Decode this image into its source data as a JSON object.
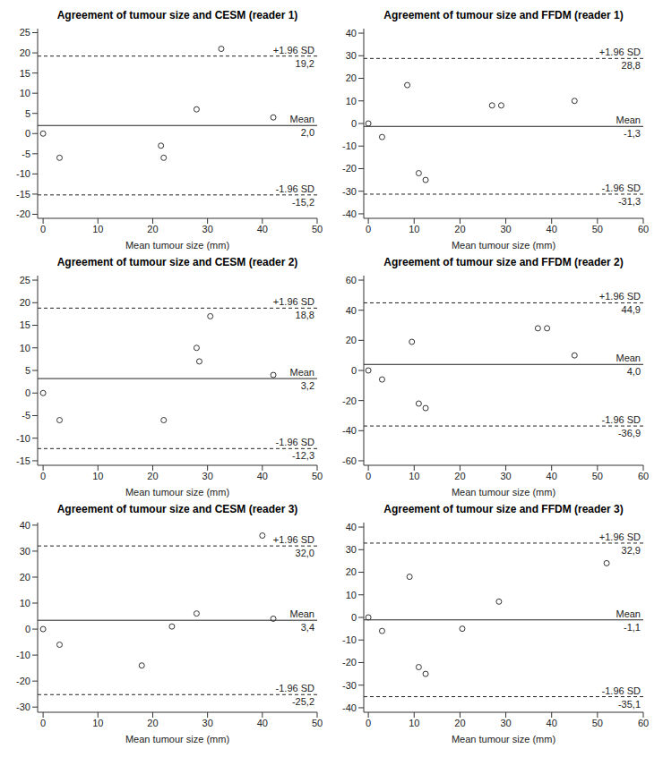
{
  "chart_data": [
    {
      "type": "scatter",
      "title": "Agreement of tumour size and CESM (reader 1)",
      "x_label": "Mean tumour size (mm)",
      "xlim": [
        -1,
        50
      ],
      "xticks": [
        0,
        10,
        20,
        30,
        40,
        50
      ],
      "ylim": [
        -21,
        26
      ],
      "yticks": [
        -20,
        -15,
        -10,
        -5,
        0,
        5,
        10,
        15,
        20,
        25
      ],
      "grid": false,
      "marker": "open_circle",
      "color": "#333333",
      "x": [
        0,
        3,
        21.5,
        22,
        28,
        32.5,
        42
      ],
      "values": [
        0,
        -6,
        -3,
        -6,
        6,
        21,
        4
      ],
      "lines": [
        {
          "name": "+1.96 SD",
          "value": 19.2,
          "value_label": "19,2",
          "line_style": "dashed"
        },
        {
          "name": "Mean",
          "value": 2.0,
          "value_label": "2,0",
          "line_style": "solid"
        },
        {
          "name": "-1.96 SD",
          "value": -15.2,
          "value_label": "-15,2",
          "line_style": "dashed"
        }
      ]
    },
    {
      "type": "scatter",
      "title": "Agreement of tumour size and FFDM (reader 1)",
      "x_label": "Mean tumour size (mm)",
      "xlim": [
        -1,
        60
      ],
      "xticks": [
        0,
        10,
        20,
        30,
        40,
        50,
        60
      ],
      "ylim": [
        -42,
        42
      ],
      "yticks": [
        -40,
        -30,
        -20,
        -10,
        0,
        10,
        20,
        30,
        40
      ],
      "grid": false,
      "marker": "open_circle",
      "color": "#333333",
      "x": [
        0,
        3,
        8.5,
        11,
        12.5,
        27,
        29,
        45
      ],
      "values": [
        0,
        -6,
        17,
        -22,
        -25,
        8,
        8,
        10
      ],
      "lines": [
        {
          "name": "+1.96 SD",
          "value": 28.8,
          "value_label": "28,8",
          "line_style": "dashed"
        },
        {
          "name": "Mean",
          "value": -1.3,
          "value_label": "-1,3",
          "line_style": "solid"
        },
        {
          "name": "-1.96 SD",
          "value": -31.3,
          "value_label": "-31,3",
          "line_style": "dashed"
        }
      ]
    },
    {
      "type": "scatter",
      "title": "Agreement of tumour size and CESM (reader 2)",
      "x_label": "Mean tumour size (mm)",
      "xlim": [
        -1,
        50
      ],
      "xticks": [
        0,
        10,
        20,
        30,
        40,
        50
      ],
      "ylim": [
        -16,
        26
      ],
      "yticks": [
        -15,
        -10,
        -5,
        0,
        5,
        10,
        15,
        20,
        25
      ],
      "grid": false,
      "marker": "open_circle",
      "color": "#333333",
      "x": [
        0,
        3,
        22,
        28,
        28.5,
        30.5,
        42
      ],
      "values": [
        0,
        -6,
        -6,
        10,
        7,
        17,
        4
      ],
      "lines": [
        {
          "name": "+1.96 SD",
          "value": 18.8,
          "value_label": "18,8",
          "line_style": "dashed"
        },
        {
          "name": "Mean",
          "value": 3.2,
          "value_label": "3,2",
          "line_style": "solid"
        },
        {
          "name": "-1.96 SD",
          "value": -12.3,
          "value_label": "-12,3",
          "line_style": "dashed"
        }
      ]
    },
    {
      "type": "scatter",
      "title": "Agreement of tumour size and FFDM (reader 2)",
      "x_label": "Mean tumour size (mm)",
      "xlim": [
        -1,
        60
      ],
      "xticks": [
        0,
        10,
        20,
        30,
        40,
        50,
        60
      ],
      "ylim": [
        -63,
        63
      ],
      "yticks": [
        -60,
        -40,
        -20,
        0,
        20,
        40,
        60
      ],
      "grid": false,
      "marker": "open_circle",
      "color": "#333333",
      "x": [
        0,
        3,
        9.5,
        11,
        12.5,
        37,
        39,
        45
      ],
      "values": [
        0,
        -6,
        19,
        -22,
        -25,
        28,
        28,
        10
      ],
      "lines": [
        {
          "name": "+1.96 SD",
          "value": 44.9,
          "value_label": "44,9",
          "line_style": "dashed"
        },
        {
          "name": "Mean",
          "value": 4.0,
          "value_label": "4,0",
          "line_style": "solid"
        },
        {
          "name": "-1.96 SD",
          "value": -36.9,
          "value_label": "-36,9",
          "line_style": "dashed"
        }
      ]
    },
    {
      "type": "scatter",
      "title": "Agreement of tumour size and CESM (reader 3)",
      "x_label": "Mean tumour size (mm)",
      "xlim": [
        -1,
        50
      ],
      "xticks": [
        0,
        10,
        20,
        30,
        40,
        50
      ],
      "ylim": [
        -32,
        41
      ],
      "yticks": [
        -30,
        -20,
        -10,
        0,
        10,
        20,
        30,
        40
      ],
      "grid": false,
      "marker": "open_circle",
      "color": "#333333",
      "x": [
        0,
        3,
        18,
        23.5,
        28,
        40,
        42
      ],
      "values": [
        0,
        -6,
        -14,
        1,
        6,
        36,
        4
      ],
      "lines": [
        {
          "name": "+1.96 SD",
          "value": 32.0,
          "value_label": "32,0",
          "line_style": "dashed"
        },
        {
          "name": "Mean",
          "value": 3.4,
          "value_label": "3,4",
          "line_style": "solid"
        },
        {
          "name": "-1.96 SD",
          "value": -25.2,
          "value_label": "-25,2",
          "line_style": "dashed"
        }
      ]
    },
    {
      "type": "scatter",
      "title": "Agreement of tumour size and FFDM (reader 3)",
      "x_label": "Mean tumour size (mm)",
      "xlim": [
        -1,
        60
      ],
      "xticks": [
        0,
        10,
        20,
        30,
        40,
        50,
        60
      ],
      "ylim": [
        -42,
        42
      ],
      "yticks": [
        -40,
        -30,
        -20,
        -10,
        0,
        10,
        20,
        30,
        40
      ],
      "grid": false,
      "marker": "open_circle",
      "color": "#333333",
      "x": [
        0,
        3,
        9,
        11,
        12.5,
        20.5,
        28.5,
        52
      ],
      "values": [
        0,
        -6,
        18,
        -22,
        -25,
        -5,
        7,
        24
      ],
      "lines": [
        {
          "name": "+1.96 SD",
          "value": 32.9,
          "value_label": "32,9",
          "line_style": "dashed"
        },
        {
          "name": "Mean",
          "value": -1.1,
          "value_label": "-1,1",
          "line_style": "solid"
        },
        {
          "name": "-1.96 SD",
          "value": -35.1,
          "value_label": "-35,1",
          "line_style": "dashed"
        }
      ]
    }
  ]
}
